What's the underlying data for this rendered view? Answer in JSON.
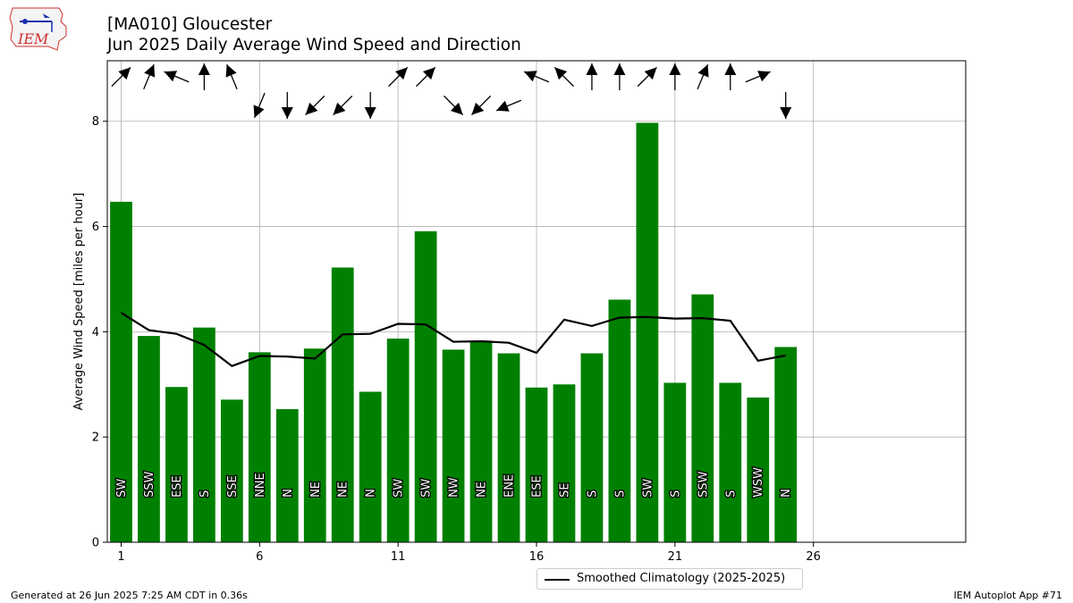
{
  "header": {
    "line1": "[MA010] Gloucester",
    "line2": "Jun 2025 Daily Average Wind Speed and Direction"
  },
  "logo": {
    "text": "IEM"
  },
  "footer": {
    "left": "Generated at 26 Jun 2025 7:25 AM CDT in 0.36s",
    "right": "IEM Autoplot App #71"
  },
  "legend": {
    "label": "Smoothed Climatology (2025-2025)"
  },
  "colors": {
    "bar": "#008000",
    "line": "#000000",
    "grid": "#b0b0b0"
  },
  "chart_data": {
    "type": "bar",
    "ylabel": "Average Wind Speed [miles per hour]",
    "xlim": [
      0.5,
      31.5
    ],
    "ylim": [
      0,
      9.15
    ],
    "xticks": [
      1,
      6,
      11,
      16,
      21,
      26
    ],
    "yticks": [
      0,
      2,
      4,
      6,
      8
    ],
    "grid": true,
    "legend_position": "bottom-center",
    "days": [
      1,
      2,
      3,
      4,
      5,
      6,
      7,
      8,
      9,
      10,
      11,
      12,
      13,
      14,
      15,
      16,
      17,
      18,
      19,
      20,
      21,
      22,
      23,
      24,
      25
    ],
    "values": [
      6.47,
      3.92,
      2.95,
      4.08,
      2.71,
      3.61,
      2.53,
      3.68,
      5.22,
      2.86,
      3.87,
      5.91,
      3.66,
      3.83,
      3.59,
      2.94,
      3.0,
      3.59,
      4.61,
      7.97,
      3.03,
      4.71,
      3.03,
      2.75,
      3.71
    ],
    "directions": [
      "SW",
      "SSW",
      "ESE",
      "S",
      "SSE",
      "NNE",
      "N",
      "NE",
      "NE",
      "N",
      "SW",
      "SW",
      "NW",
      "NE",
      "ENE",
      "ESE",
      "SE",
      "S",
      "S",
      "SW",
      "S",
      "SSW",
      "S",
      "WSW",
      "N"
    ],
    "climatology": {
      "name": "Smoothed Climatology (2025-2025)",
      "values": [
        4.36,
        4.03,
        3.96,
        3.75,
        3.35,
        3.54,
        3.53,
        3.49,
        3.95,
        3.96,
        4.15,
        4.14,
        3.81,
        3.82,
        3.79,
        3.6,
        4.23,
        4.11,
        4.27,
        4.28,
        4.25,
        4.26,
        4.21,
        3.45,
        3.55
      ]
    }
  }
}
